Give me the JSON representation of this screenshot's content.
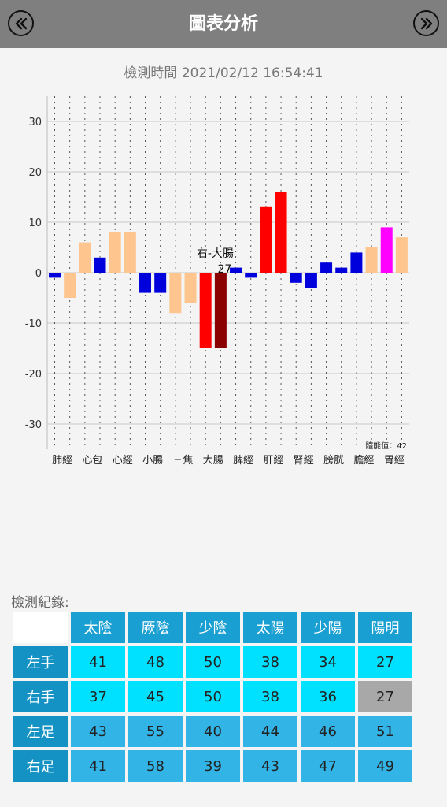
{
  "header": {
    "title": "圖表分析",
    "prev_icon": "double-chevron-left-icon",
    "next_icon": "double-chevron-right-icon",
    "background": "#7f7f7f"
  },
  "time_label": "檢測時間 2021/02/12 16:54:41",
  "chart_data": {
    "type": "bar",
    "ylim": [
      -35,
      35
    ],
    "yticks": [
      -30,
      -20,
      -10,
      0,
      10,
      20,
      30
    ],
    "grid": true,
    "category_labels": [
      "肺經",
      "心包",
      "心經",
      "小腸",
      "三焦",
      "大腸",
      "脾經",
      "肝經",
      "腎經",
      "膀胱",
      "膽經",
      "胃經"
    ],
    "values": [
      -1,
      -5,
      6,
      3,
      8,
      8,
      -4,
      -4,
      -8,
      -6,
      -15,
      -15,
      1,
      -1,
      13,
      16,
      -2,
      -3,
      2,
      1,
      4,
      5,
      9,
      7
    ],
    "colors": [
      "#0000dd",
      "#ffc58f",
      "#ffc58f",
      "#0000dd",
      "#ffc58f",
      "#ffc58f",
      "#0000dd",
      "#0000dd",
      "#ffc58f",
      "#ffc58f",
      "#ff0000",
      "#8b0000",
      "#0000dd",
      "#0000dd",
      "#ff0000",
      "#ff0000",
      "#0000dd",
      "#0000dd",
      "#0000dd",
      "#0000dd",
      "#0000dd",
      "#ffc58f",
      "#ff00ff",
      "#ffc58f"
    ],
    "highlight": {
      "label": "右-大腸",
      "value": "27"
    },
    "note": "體能值：42"
  },
  "records": {
    "label": "檢測紀錄:",
    "columns": [
      "太陰",
      "厥陰",
      "少陰",
      "太陽",
      "少陽",
      "陽明"
    ],
    "rows": [
      {
        "name": "左手",
        "values": [
          "41",
          "48",
          "50",
          "38",
          "34",
          "27"
        ]
      },
      {
        "name": "右手",
        "values": [
          "37",
          "45",
          "50",
          "38",
          "36",
          "27"
        ]
      },
      {
        "name": "左足",
        "values": [
          "43",
          "55",
          "40",
          "44",
          "46",
          "51"
        ]
      },
      {
        "name": "右足",
        "values": [
          "41",
          "58",
          "39",
          "43",
          "47",
          "49"
        ]
      }
    ]
  }
}
